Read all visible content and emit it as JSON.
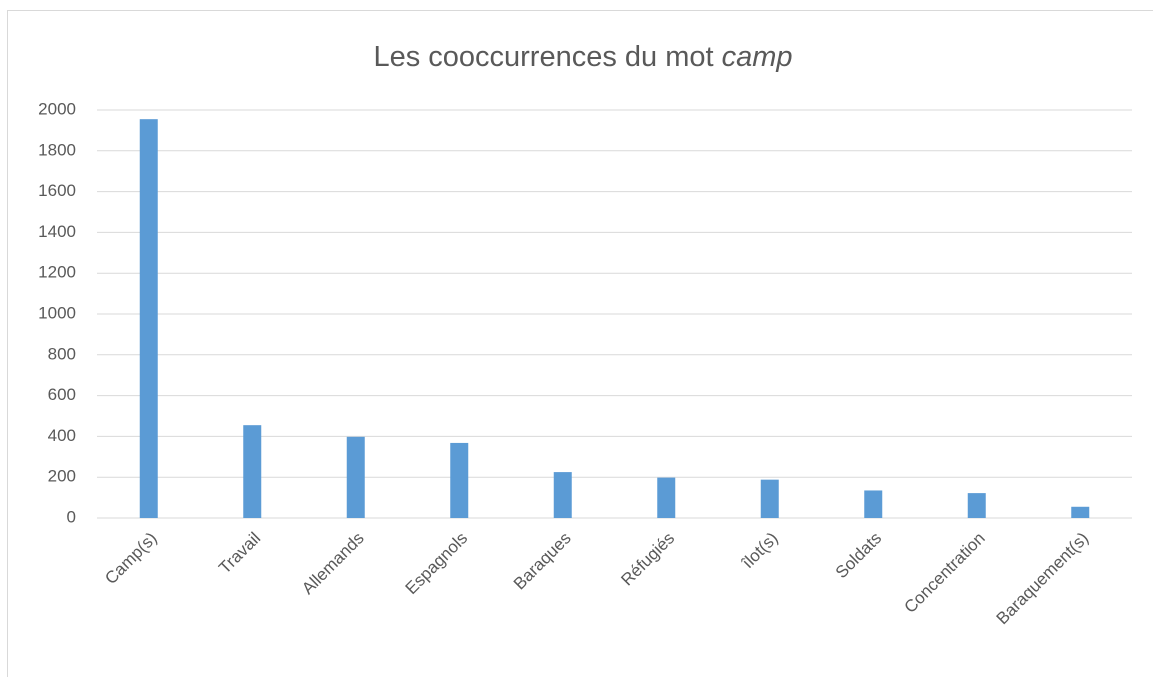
{
  "chart_data": {
    "type": "bar",
    "title": "Les cooccurrences du mot camp",
    "categories": [
      "Camp(s)",
      "Travail",
      "Allemands",
      "Espagnols",
      "Baraques",
      "Réfugiés",
      "îlot(s)",
      "Soldats",
      "Concentration",
      "Baraquement(s)"
    ],
    "values": [
      1955,
      455,
      398,
      368,
      225,
      198,
      188,
      135,
      122,
      55
    ],
    "color": "#5b9bd5",
    "ylim": [
      0,
      2000
    ],
    "yticks": [
      0,
      200,
      400,
      600,
      800,
      1000,
      1200,
      1400,
      1600,
      1800,
      2000
    ],
    "grid": true
  }
}
